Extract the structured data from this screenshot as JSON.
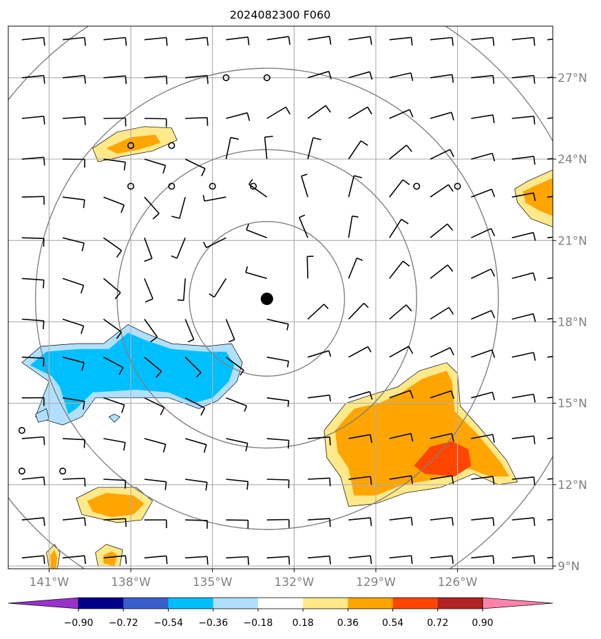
{
  "chart_data": {
    "type": "contour-map",
    "title": "2024082300 F060",
    "map": {
      "lon_range": [
        -142.5,
        -122.5
      ],
      "lat_range": [
        8.9,
        28.9
      ],
      "lon_ticks": [
        -141,
        -138,
        -135,
        -132,
        -129,
        -126
      ],
      "lat_ticks": [
        9,
        12,
        15,
        18,
        21,
        24,
        27
      ],
      "lon_tick_labels": [
        "141°W",
        "138°W",
        "135°W",
        "132°W",
        "129°W",
        "126°W"
      ],
      "lat_tick_labels": [
        "9°N",
        "12°N",
        "15°N",
        "18°N",
        "21°N",
        "24°N",
        "27°N"
      ],
      "grid": true,
      "center": {
        "lon": -133.0,
        "lat": 18.85
      },
      "range_rings_deg": [
        2.85,
        5.5,
        8.5,
        12.0
      ]
    },
    "colorbar": {
      "levels": [
        -0.9,
        -0.72,
        -0.54,
        -0.36,
        -0.18,
        0.18,
        0.36,
        0.54,
        0.72,
        0.9
      ],
      "tick_labels": [
        "−0.90",
        "−0.72",
        "−0.54",
        "−0.36",
        "−0.18",
        "0.18",
        "0.36",
        "0.54",
        "0.72",
        "0.90"
      ],
      "colors": [
        "#9932cc",
        "#00008b",
        "#3a5fcd",
        "#00bfff",
        "#b0e0fe",
        "#ffffff",
        "#ffe98a",
        "#ffa500",
        "#ff4500",
        "#b22222",
        "#ff82ab"
      ],
      "extend": "both"
    },
    "shaded_regions": [
      {
        "level": 0.18,
        "points": [
          [
            -139.4,
            24.4
          ],
          [
            -138.5,
            25.0
          ],
          [
            -137.5,
            25.2
          ],
          [
            -136.5,
            25.15
          ],
          [
            -136.3,
            24.7
          ],
          [
            -137.2,
            24.3
          ],
          [
            -138.3,
            24.1
          ],
          [
            -139.2,
            23.9
          ]
        ]
      },
      {
        "level": 0.36,
        "points": [
          [
            -138.9,
            24.4
          ],
          [
            -138.0,
            24.8
          ],
          [
            -137.1,
            24.9
          ],
          [
            -136.9,
            24.6
          ],
          [
            -137.7,
            24.35
          ],
          [
            -138.5,
            24.2
          ]
        ]
      },
      {
        "level": 0.18,
        "points": [
          [
            -123.4,
            23.2
          ],
          [
            -122.5,
            23.6
          ],
          [
            -122.5,
            21.5
          ],
          [
            -123.3,
            21.8
          ],
          [
            -123.8,
            22.4
          ],
          [
            -123.9,
            22.9
          ]
        ]
      },
      {
        "level": 0.36,
        "points": [
          [
            -123.2,
            23.0
          ],
          [
            -122.5,
            23.3
          ],
          [
            -122.5,
            21.9
          ],
          [
            -123.0,
            22.1
          ],
          [
            -123.5,
            22.4
          ],
          [
            -123.6,
            22.8
          ]
        ]
      },
      {
        "level": -0.18,
        "points": [
          [
            -142.0,
            16.5
          ],
          [
            -141.3,
            17.1
          ],
          [
            -140.0,
            17.2
          ],
          [
            -139.0,
            17.2
          ],
          [
            -138.1,
            17.9
          ],
          [
            -137.5,
            17.6
          ],
          [
            -136.5,
            17.2
          ],
          [
            -135.2,
            17.1
          ],
          [
            -134.3,
            17.2
          ],
          [
            -133.9,
            16.5
          ],
          [
            -134.1,
            15.8
          ],
          [
            -134.8,
            15.1
          ],
          [
            -135.5,
            14.8
          ],
          [
            -136.6,
            15.2
          ],
          [
            -137.8,
            15.2
          ],
          [
            -139.3,
            15.2
          ],
          [
            -139.8,
            14.5
          ],
          [
            -140.5,
            14.2
          ],
          [
            -141.5,
            14.5
          ],
          [
            -141.2,
            15.3
          ],
          [
            -141.0,
            15.8
          ]
        ]
      },
      {
        "level": -0.36,
        "points": [
          [
            -141.7,
            16.4
          ],
          [
            -141.1,
            16.9
          ],
          [
            -139.9,
            17.0
          ],
          [
            -138.8,
            17.0
          ],
          [
            -138.1,
            17.6
          ],
          [
            -137.4,
            17.3
          ],
          [
            -136.5,
            17.0
          ],
          [
            -135.3,
            16.9
          ],
          [
            -134.5,
            16.9
          ],
          [
            -134.2,
            16.4
          ],
          [
            -134.4,
            15.8
          ],
          [
            -135.0,
            15.2
          ],
          [
            -135.7,
            15.0
          ],
          [
            -136.6,
            15.4
          ],
          [
            -137.8,
            15.5
          ],
          [
            -139.4,
            15.4
          ],
          [
            -140.0,
            14.8
          ],
          [
            -140.3,
            14.6
          ],
          [
            -140.6,
            15.6
          ],
          [
            -140.9,
            16.0
          ]
        ]
      },
      {
        "level": -0.18,
        "points": [
          [
            -141.5,
            14.6
          ],
          [
            -141.1,
            14.8
          ],
          [
            -141.0,
            14.4
          ],
          [
            -141.4,
            14.3
          ]
        ]
      },
      {
        "level": -0.18,
        "points": [
          [
            -138.6,
            14.6
          ],
          [
            -138.4,
            14.5
          ],
          [
            -138.6,
            14.3
          ],
          [
            -138.8,
            14.5
          ]
        ]
      },
      {
        "level": 0.18,
        "points": [
          [
            -130.9,
            14.0
          ],
          [
            -130.1,
            15.0
          ],
          [
            -129.2,
            15.3
          ],
          [
            -128.2,
            15.6
          ],
          [
            -127.4,
            16.2
          ],
          [
            -126.4,
            16.5
          ],
          [
            -126.0,
            16.1
          ],
          [
            -125.9,
            14.9
          ],
          [
            -125.1,
            14.0
          ],
          [
            -124.2,
            12.9
          ],
          [
            -123.8,
            12.1
          ],
          [
            -124.5,
            12.0
          ],
          [
            -125.4,
            12.4
          ],
          [
            -126.6,
            11.9
          ],
          [
            -127.9,
            11.7
          ],
          [
            -129.0,
            11.3
          ],
          [
            -130.0,
            11.2
          ],
          [
            -130.3,
            12.3
          ],
          [
            -130.8,
            13.0
          ]
        ]
      },
      {
        "level": 0.36,
        "points": [
          [
            -130.5,
            14.0
          ],
          [
            -129.8,
            14.8
          ],
          [
            -128.9,
            15.0
          ],
          [
            -128.2,
            15.3
          ],
          [
            -127.3,
            15.9
          ],
          [
            -126.4,
            16.2
          ],
          [
            -126.2,
            15.8
          ],
          [
            -126.1,
            14.7
          ],
          [
            -125.3,
            13.9
          ],
          [
            -124.4,
            12.8
          ],
          [
            -124.1,
            12.3
          ],
          [
            -124.8,
            12.3
          ],
          [
            -125.6,
            12.6
          ],
          [
            -126.8,
            12.2
          ],
          [
            -128.0,
            12.0
          ],
          [
            -129.0,
            11.6
          ],
          [
            -129.8,
            11.6
          ],
          [
            -130.0,
            12.6
          ],
          [
            -130.4,
            13.2
          ]
        ]
      },
      {
        "level": 0.54,
        "points": [
          [
            -127.6,
            12.7
          ],
          [
            -127.0,
            13.4
          ],
          [
            -126.2,
            13.6
          ],
          [
            -125.6,
            13.3
          ],
          [
            -125.5,
            12.7
          ],
          [
            -126.1,
            12.3
          ],
          [
            -127.2,
            12.4
          ]
        ]
      },
      {
        "level": 0.18,
        "points": [
          [
            -140.0,
            11.5
          ],
          [
            -139.2,
            11.9
          ],
          [
            -137.8,
            11.9
          ],
          [
            -137.2,
            11.4
          ],
          [
            -137.6,
            10.7
          ],
          [
            -138.5,
            10.6
          ],
          [
            -139.8,
            10.9
          ]
        ]
      },
      {
        "level": 0.36,
        "points": [
          [
            -139.6,
            11.4
          ],
          [
            -138.9,
            11.7
          ],
          [
            -137.9,
            11.6
          ],
          [
            -137.5,
            11.3
          ],
          [
            -137.9,
            10.9
          ],
          [
            -138.7,
            10.8
          ],
          [
            -139.4,
            11.0
          ]
        ]
      },
      {
        "level": 0.18,
        "points": [
          [
            -141.1,
            9.5
          ],
          [
            -140.8,
            9.8
          ],
          [
            -140.6,
            9.5
          ],
          [
            -140.7,
            8.9
          ],
          [
            -141.0,
            8.9
          ]
        ]
      },
      {
        "level": 0.36,
        "points": [
          [
            -140.95,
            9.4
          ],
          [
            -140.8,
            9.6
          ],
          [
            -140.7,
            9.3
          ],
          [
            -140.75,
            8.9
          ],
          [
            -140.95,
            8.9
          ]
        ]
      },
      {
        "level": 0.18,
        "points": [
          [
            -139.3,
            9.5
          ],
          [
            -138.9,
            9.8
          ],
          [
            -138.3,
            9.6
          ],
          [
            -138.4,
            9.0
          ],
          [
            -139.2,
            9.0
          ]
        ]
      },
      {
        "level": 0.36,
        "points": [
          [
            -139.0,
            9.4
          ],
          [
            -138.7,
            9.55
          ],
          [
            -138.5,
            9.4
          ],
          [
            -138.6,
            9.0
          ],
          [
            -139.0,
            9.1
          ]
        ]
      }
    ],
    "calm_points": [
      [
        -134.5,
        27.0
      ],
      [
        -133.0,
        27.0
      ],
      [
        -138.0,
        24.5
      ],
      [
        -136.5,
        24.5
      ],
      [
        -138.0,
        23.0
      ],
      [
        -136.5,
        23.0
      ],
      [
        -135.0,
        23.0
      ],
      [
        -133.5,
        23.0
      ],
      [
        -127.5,
        23.0
      ],
      [
        -126.0,
        23.0
      ],
      [
        -142.0,
        14.0
      ],
      [
        -142.0,
        12.5
      ],
      [
        -140.5,
        12.5
      ]
    ],
    "barbs": {
      "lons": [
        -142.0,
        -140.5,
        -139.0,
        -137.5,
        -136.0,
        -134.5,
        -133.0,
        -131.5,
        -130.0,
        -128.5,
        -127.0,
        -125.5,
        -124.0,
        -122.7
      ],
      "lats": [
        28.4,
        27.0,
        25.5,
        24.0,
        22.6,
        21.1,
        19.6,
        18.1,
        16.7,
        15.2,
        13.7,
        12.2,
        10.7,
        9.3
      ]
    }
  }
}
